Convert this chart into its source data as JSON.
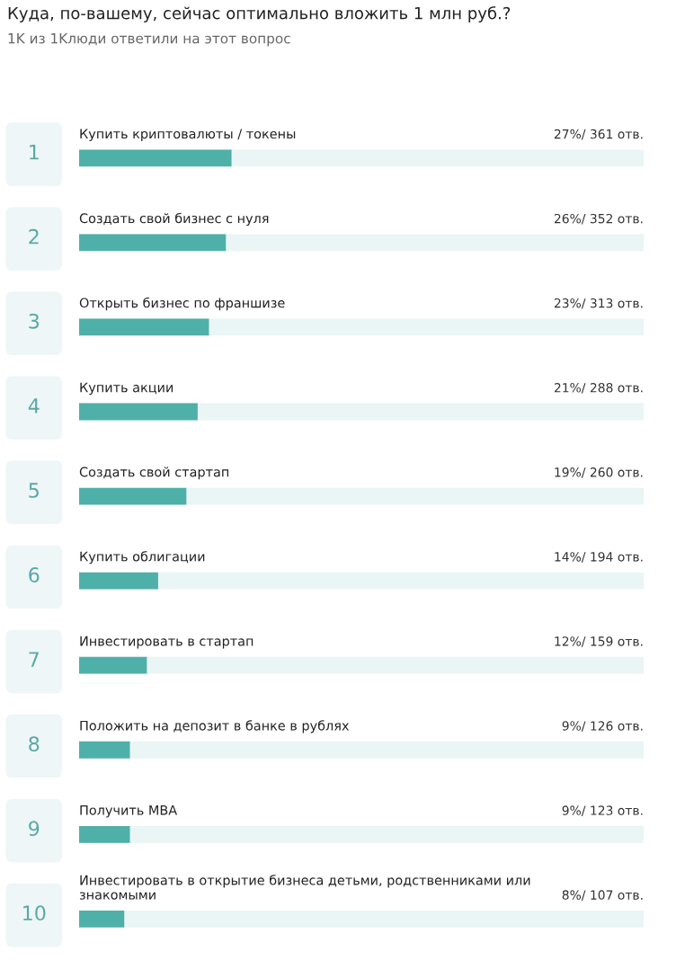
{
  "chart_data": {
    "type": "bar",
    "orientation": "horizontal",
    "title": "Куда, по-вашему, сейчас оптимально вложить 1 млн руб.?",
    "subtitle": "1K из 1Kлюди ответили на этот вопрос",
    "categories": [
      "Купить криптовалюты / токены",
      "Создать свой бизнес с нуля",
      "Открыть бизнес по франшизе",
      "Купить акции",
      "Создать свой стартап",
      "Купить облигации",
      "Инвестировать в стартап",
      "Положить на депозит в банке в рублях",
      "Получить MBA",
      "Инвестировать в открытие бизнеса детьми, родственниками или знакомыми"
    ],
    "values": [
      27,
      26,
      23,
      21,
      19,
      14,
      12,
      9,
      9,
      8
    ],
    "value_labels": [
      "27%/ 361 отв.",
      "26%/ 352 отв.",
      "23%/ 313 отв.",
      "21%/ 288 отв.",
      "19%/ 260 отв.",
      "14%/ 194 отв.",
      "12%/ 159 отв.",
      "9%/ 126 отв.",
      "9%/ 123 отв.",
      "8%/ 107 отв."
    ],
    "annotations": [
      "1",
      "2",
      "3",
      "4",
      "5",
      "6",
      "7",
      "8",
      "9",
      "10"
    ],
    "color": "#4fb0aa",
    "xlim": [
      0,
      100
    ]
  }
}
